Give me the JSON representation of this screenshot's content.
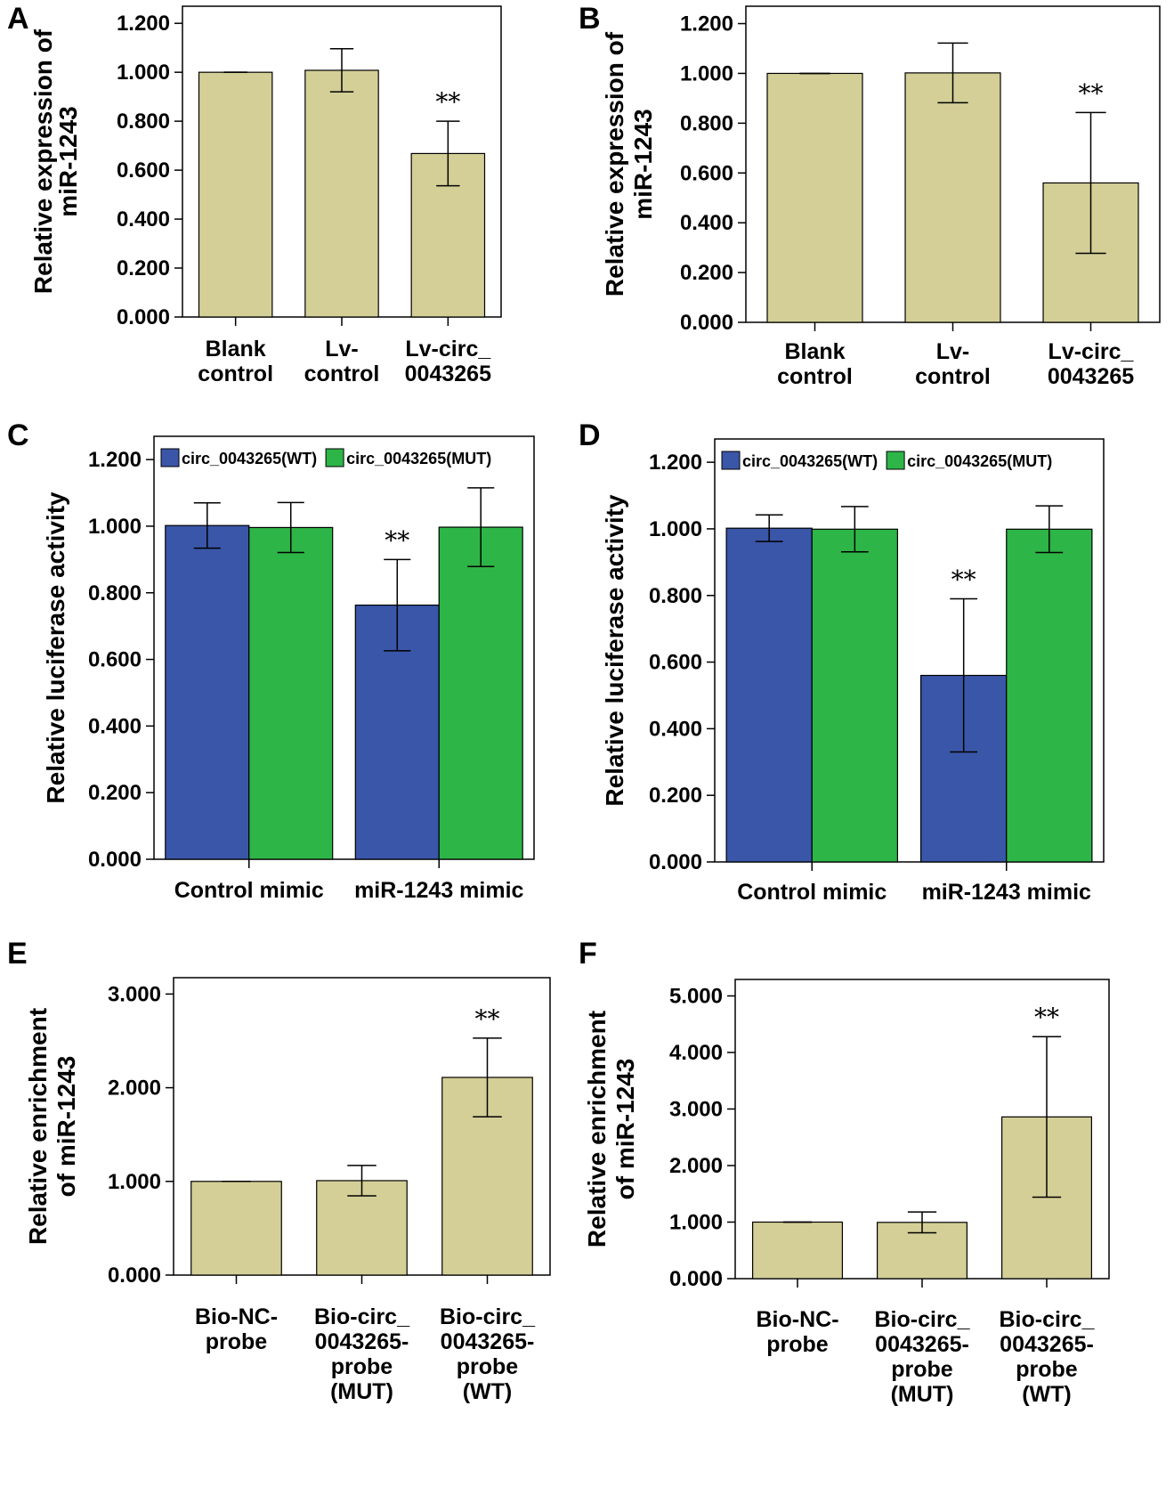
{
  "colors": {
    "tan": "#d4cf97",
    "wt_blue": "#3a56a8",
    "mut_green": "#2db547",
    "axis": "#000000"
  },
  "chart_data": [
    {
      "panel": "A",
      "type": "bar",
      "ylabel": [
        "Relative expression of",
        "miR-1243"
      ],
      "ylim": [
        0,
        1.2
      ],
      "ticks": [
        "0.000",
        "0.200",
        "0.400",
        "0.600",
        "0.800",
        "1.000",
        "1.200"
      ],
      "categories": [
        [
          "Blank",
          "control"
        ],
        [
          "Lv-",
          "control"
        ],
        [
          "Lv-circ_",
          "0043265"
        ]
      ],
      "series": [
        {
          "name": "",
          "values": [
            1.0,
            1.008,
            0.668
          ],
          "errors": [
            0.0,
            0.088,
            0.132
          ],
          "color": "tan"
        }
      ],
      "significance": [
        "",
        "",
        "**"
      ]
    },
    {
      "panel": "B",
      "type": "bar",
      "ylabel": [
        "Relative expression of",
        "miR-1243"
      ],
      "ylim": [
        0,
        1.2
      ],
      "ticks": [
        "0.000",
        "0.200",
        "0.400",
        "0.600",
        "0.800",
        "1.000",
        "1.200"
      ],
      "categories": [
        [
          "Blank",
          "control"
        ],
        [
          "Lv-",
          "control"
        ],
        [
          "Lv-circ_",
          "0043265"
        ]
      ],
      "series": [
        {
          "name": "",
          "values": [
            1.0,
            1.002,
            0.56
          ],
          "errors": [
            0.0,
            0.12,
            0.283
          ],
          "color": "tan"
        }
      ],
      "significance": [
        "",
        "",
        "**"
      ]
    },
    {
      "panel": "C",
      "type": "bar",
      "ylabel": [
        "Relative luciferase activity"
      ],
      "ylim": [
        0,
        1.2
      ],
      "ticks": [
        "0.000",
        "0.200",
        "0.400",
        "0.600",
        "0.800",
        "1.000",
        "1.200"
      ],
      "categories": [
        [
          "Control mimic"
        ],
        [
          "miR-1243 mimic"
        ]
      ],
      "series": [
        {
          "name": "circ_0043265(WT)",
          "values": [
            1.002,
            0.763
          ],
          "errors": [
            0.068,
            0.137
          ],
          "color": "wt_blue"
        },
        {
          "name": "circ_0043265(MUT)",
          "values": [
            0.996,
            0.997
          ],
          "errors": [
            0.075,
            0.118
          ],
          "color": "mut_green"
        }
      ],
      "legend": "top",
      "significance_wt": [
        "",
        "**"
      ]
    },
    {
      "panel": "D",
      "type": "bar",
      "ylabel": [
        "Relative luciferase activity"
      ],
      "ylim": [
        0,
        1.2
      ],
      "ticks": [
        "0.000",
        "0.200",
        "0.400",
        "0.600",
        "0.800",
        "1.000",
        "1.200"
      ],
      "categories": [
        [
          "Control mimic"
        ],
        [
          "miR-1243 mimic"
        ]
      ],
      "series": [
        {
          "name": "circ_0043265(WT)",
          "values": [
            1.002,
            0.56
          ],
          "errors": [
            0.04,
            0.23
          ],
          "color": "wt_blue"
        },
        {
          "name": "circ_0043265(MUT)",
          "values": [
            0.999,
            0.999
          ],
          "errors": [
            0.068,
            0.07
          ],
          "color": "mut_green"
        }
      ],
      "legend": "top",
      "significance_wt": [
        "",
        "**"
      ]
    },
    {
      "panel": "E",
      "type": "bar",
      "ylabel": [
        "Relative enrichment",
        "of miR-1243"
      ],
      "ylim": [
        0,
        3.0
      ],
      "ticks": [
        "0.000",
        "1.000",
        "2.000",
        "3.000"
      ],
      "categories": [
        [
          "Bio-NC-",
          "probe"
        ],
        [
          "Bio-circ_",
          "0043265-",
          "probe",
          "(MUT)"
        ],
        [
          "Bio-circ_",
          "0043265-",
          "probe",
          "(WT)"
        ]
      ],
      "series": [
        {
          "name": "",
          "values": [
            1.0,
            1.008,
            2.11
          ],
          "errors": [
            0.0,
            0.162,
            0.42
          ],
          "color": "tan"
        }
      ],
      "significance": [
        "",
        "",
        "**"
      ]
    },
    {
      "panel": "F",
      "type": "bar",
      "ylabel": [
        "Relative enrichment",
        "of miR-1243"
      ],
      "ylim": [
        0,
        5.0
      ],
      "ticks": [
        "0.000",
        "1.000",
        "2.000",
        "3.000",
        "4.000",
        "5.000"
      ],
      "categories": [
        [
          "Bio-NC-",
          "probe"
        ],
        [
          "Bio-circ_",
          "0043265-",
          "probe",
          "(MUT)"
        ],
        [
          "Bio-circ_",
          "0043265-",
          "probe",
          "(WT)"
        ]
      ],
      "series": [
        {
          "name": "",
          "values": [
            1.0,
            0.995,
            2.86
          ],
          "errors": [
            0.0,
            0.185,
            1.42
          ],
          "color": "tan"
        }
      ],
      "significance": [
        "",
        "",
        "**"
      ]
    }
  ]
}
